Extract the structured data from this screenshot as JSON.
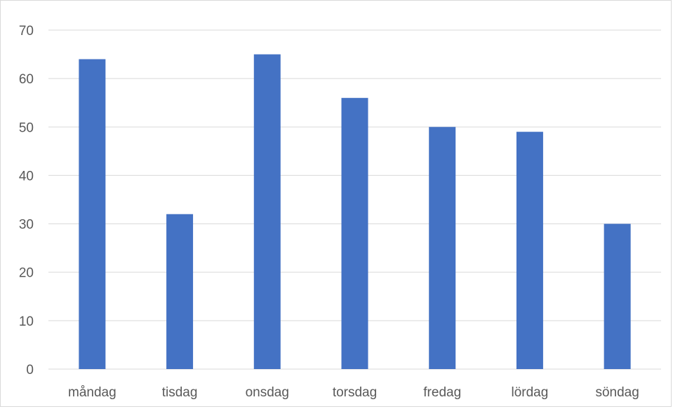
{
  "chart_data": {
    "type": "bar",
    "categories": [
      "måndag",
      "tisdag",
      "onsdag",
      "torsdag",
      "fredag",
      "lördag",
      "söndag"
    ],
    "values": [
      64,
      32,
      65,
      56,
      50,
      49,
      30
    ],
    "ylim": [
      0,
      70
    ],
    "yticks": [
      "0",
      "10",
      "20",
      "30",
      "40",
      "50",
      "60",
      "70"
    ],
    "grid": true,
    "legend": "none",
    "bar_color": "#4472c4",
    "grid_color": "#d9d9d9",
    "label_color": "#595959"
  }
}
